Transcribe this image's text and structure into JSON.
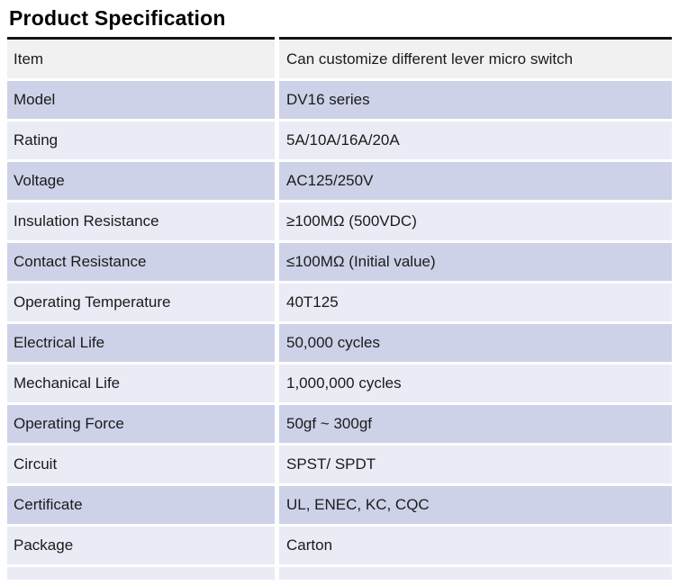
{
  "page": {
    "title": "Product Specification"
  },
  "table": {
    "rows": [
      {
        "item": "Item",
        "value": "Can customize different lever micro switch"
      },
      {
        "item": "Model",
        "value": "DV16 series"
      },
      {
        "item": "Rating",
        "value": "5A/10A/16A/20A"
      },
      {
        "item": "Voltage",
        "value": "AC125/250V"
      },
      {
        "item": "Insulation Resistance",
        "value": "≥100MΩ (500VDC)"
      },
      {
        "item": "Contact Resistance",
        "value": "≤100MΩ (Initial value)"
      },
      {
        "item": "Operating Temperature",
        "value": "40T125"
      },
      {
        "item": "Electrical Life",
        "value": "50,000 cycles"
      },
      {
        "item": "Mechanical Life",
        "value": "1,000,000 cycles"
      },
      {
        "item": "Operating Force",
        "value": "50gf ~ 300gf"
      },
      {
        "item": "Circuit",
        "value": "SPST/ SPDT"
      },
      {
        "item": "Certificate",
        "value": "UL, ENEC, KC, CQC"
      },
      {
        "item": "Package",
        "value": "Carton"
      }
    ]
  },
  "colors": {
    "row_gray": "#f1f1f1",
    "row_light": "#e9ebf5",
    "row_medium": "#cdd2e8",
    "rule": "#141414"
  }
}
